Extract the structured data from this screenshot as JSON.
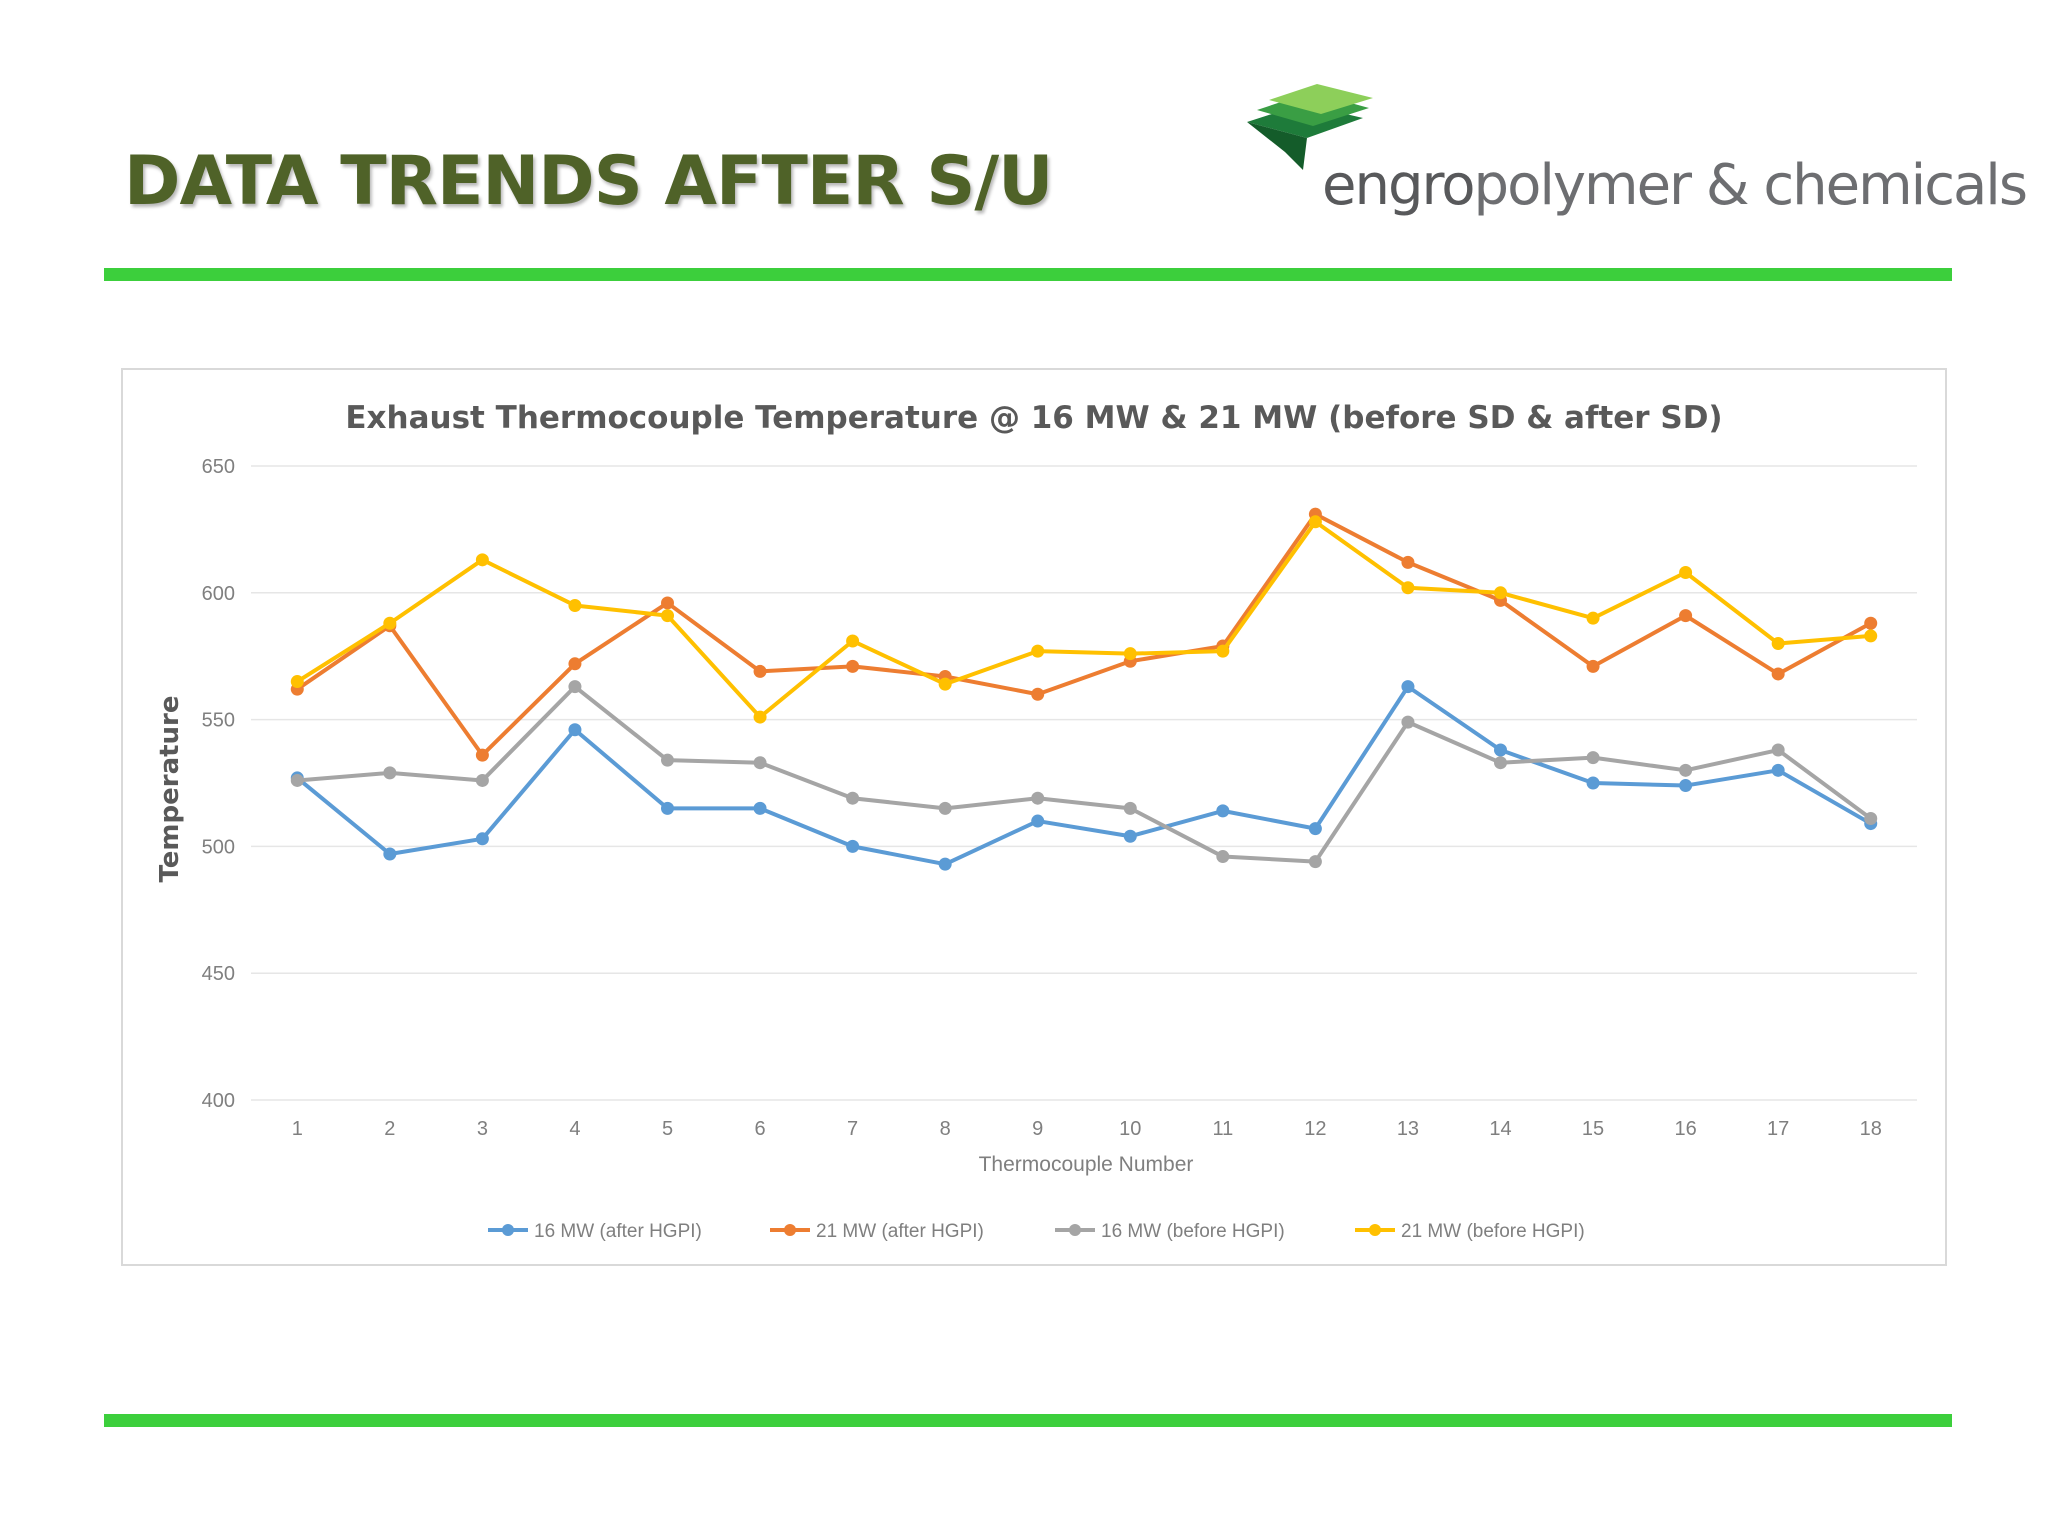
{
  "slide": {
    "title": "DATA TRENDS AFTER S/U"
  },
  "logo": {
    "word1": "engro",
    "word2": "polymer & chemicals",
    "colors": {
      "dark_green": "#1e7b3a",
      "mid_green": "#4cae4c",
      "light_green": "#8dcf5a",
      "text": "#6d6e71"
    }
  },
  "accent_color": "#3ccf3c",
  "title_color": "#4f6228",
  "chart_data": {
    "type": "line",
    "title": "Exhaust Thermocouple Temperature @ 16 MW & 21 MW  (before SD & after SD)",
    "xlabel": "Thermocouple Number",
    "ylabel": "Temperature",
    "ylim": [
      400,
      650
    ],
    "yticks": [
      400,
      450,
      500,
      550,
      600,
      650
    ],
    "grid": true,
    "legend_position": "bottom",
    "categories": [
      "1",
      "2",
      "3",
      "4",
      "5",
      "6",
      "7",
      "8",
      "9",
      "10",
      "11",
      "12",
      "13",
      "14",
      "15",
      "16",
      "17",
      "18"
    ],
    "series": [
      {
        "name": "16 MW (after HGPI)",
        "color": "#5b9bd5",
        "values": [
          527,
          497,
          503,
          546,
          515,
          515,
          500,
          493,
          510,
          504,
          514,
          507,
          563,
          538,
          525,
          524,
          530,
          509
        ]
      },
      {
        "name": "21 MW (after HGPI)",
        "color": "#ed7d31",
        "values": [
          562,
          587,
          536,
          572,
          596,
          569,
          571,
          567,
          560,
          573,
          579,
          631,
          612,
          597,
          571,
          591,
          568,
          588
        ]
      },
      {
        "name": "16 MW (before HGPI)",
        "color": "#a5a5a5",
        "values": [
          526,
          529,
          526,
          563,
          534,
          533,
          519,
          515,
          519,
          515,
          496,
          494,
          549,
          533,
          535,
          530,
          538,
          511
        ]
      },
      {
        "name": "21 MW (before HGPI)",
        "color": "#ffc000",
        "values": [
          565,
          588,
          613,
          595,
          591,
          551,
          581,
          564,
          577,
          576,
          577,
          628,
          602,
          600,
          590,
          608,
          580,
          583
        ]
      }
    ]
  }
}
